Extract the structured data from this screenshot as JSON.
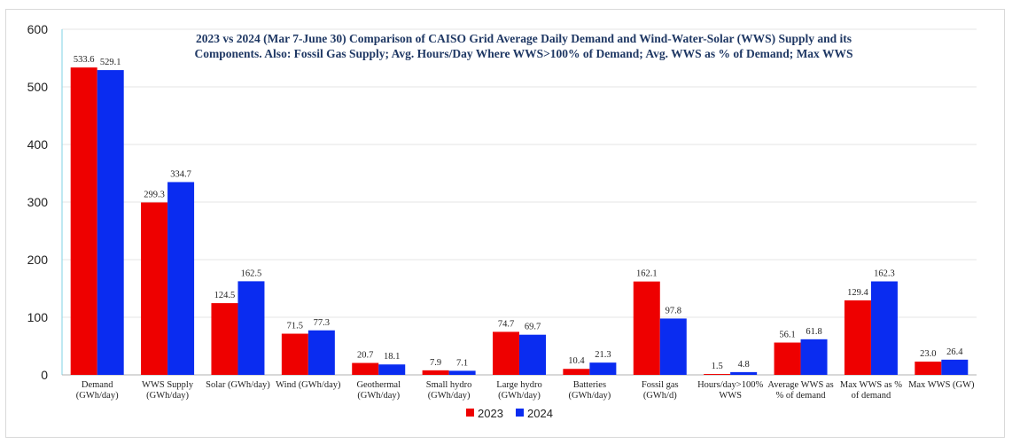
{
  "chart_data": {
    "type": "bar",
    "title": [
      "2023 vs 2024 (Mar 7-June 30) Comparison of CAISO Grid Average Daily Demand and Wind-Water-Solar (WWS) Supply and its",
      "Components. Also: Fossil Gas Supply; Avg. Hours/Day Where WWS>100% of Demand; Avg. WWS as % of Demand; Max WWS"
    ],
    "categories": [
      [
        "Demand",
        "(GWh/day)"
      ],
      [
        "WWS Supply",
        "(GWh/day)"
      ],
      [
        "Solar (GWh/day)"
      ],
      [
        "Wind (GWh/day)"
      ],
      [
        "Geothermal",
        "(GWh/day)"
      ],
      [
        "Small hydro",
        "(GWh/day)"
      ],
      [
        "Large hydro",
        "(GWh/day)"
      ],
      [
        "Batteries",
        "(GWh/day)"
      ],
      [
        "Fossil gas",
        "(GWh/d)"
      ],
      [
        "Hours/day>100%",
        "WWS"
      ],
      [
        "Average WWS as",
        "% of demand"
      ],
      [
        "Max WWS as %",
        "of demand"
      ],
      [
        "Max WWS (GW)"
      ]
    ],
    "series": [
      {
        "name": "2023",
        "color": "#ee0000",
        "values": [
          533.6,
          299.3,
          124.5,
          71.5,
          20.7,
          7.9,
          74.7,
          10.4,
          162.1,
          1.5,
          56.1,
          129.4,
          23.0
        ],
        "labels": [
          "533.6",
          "299.3",
          "124.5",
          "71.5",
          "20.7",
          "7.9",
          "74.7",
          "10.4",
          "162.1",
          "1.5",
          "56.1",
          "129.4",
          "23.0"
        ]
      },
      {
        "name": "2024",
        "color": "#0a2cf0",
        "values": [
          529.1,
          334.7,
          162.5,
          77.3,
          18.1,
          7.1,
          69.7,
          21.3,
          97.8,
          4.8,
          61.8,
          162.3,
          26.4
        ],
        "labels": [
          "529.1",
          "334.7",
          "162.5",
          "77.3",
          "18.1",
          "7.1",
          "69.7",
          "21.3",
          "97.8",
          "4.8",
          "61.8",
          "162.3",
          "26.4"
        ]
      }
    ],
    "ylim": [
      0,
      600
    ],
    "yticks": [
      "0",
      "100",
      "200",
      "300",
      "400",
      "500",
      "600"
    ],
    "grid": true,
    "legend_position": "bottom-center"
  }
}
